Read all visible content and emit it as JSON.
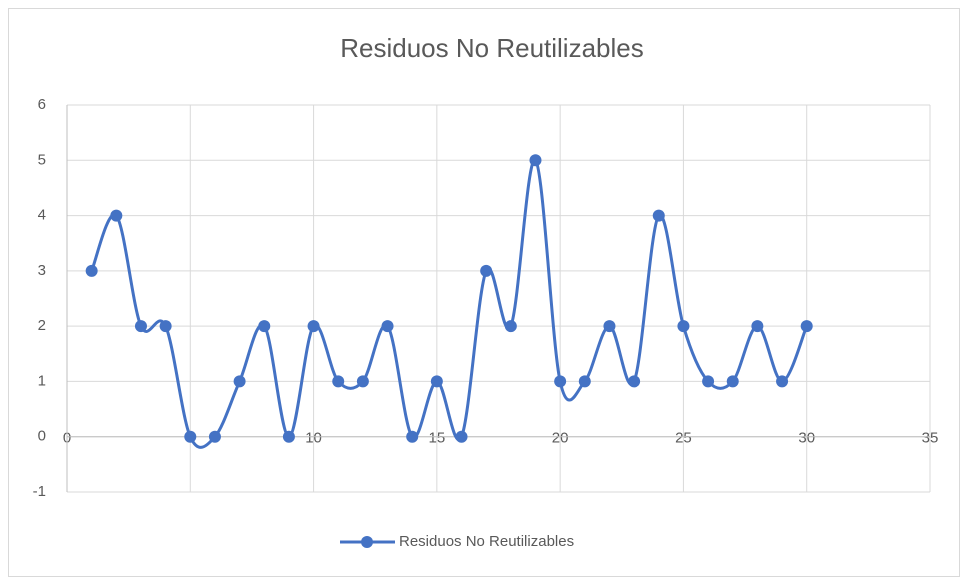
{
  "chart_data": {
    "type": "scatter",
    "title": "Residuos No Reutilizables",
    "x": [
      1,
      2,
      3,
      4,
      5,
      6,
      7,
      8,
      9,
      10,
      11,
      12,
      13,
      14,
      15,
      16,
      17,
      18,
      19,
      20,
      21,
      22,
      23,
      24,
      25,
      26,
      27,
      28,
      29,
      30
    ],
    "series": [
      {
        "name": "Residuos No Reutilizables",
        "color": "#4472c4",
        "values": [
          3,
          4,
          2,
          2,
          0,
          0,
          1,
          2,
          0,
          2,
          1,
          1,
          2,
          0,
          1,
          0,
          3,
          2,
          5,
          1,
          1,
          2,
          1,
          4,
          2,
          1,
          1,
          2,
          1,
          2
        ]
      }
    ],
    "xlim": [
      0,
      35
    ],
    "xticks": [
      0,
      5,
      10,
      15,
      20,
      25,
      30,
      35
    ],
    "ylim": [
      -1,
      6
    ],
    "yticks": [
      -1,
      0,
      1,
      2,
      3,
      4,
      5,
      6
    ],
    "grid": true,
    "smooth": true,
    "legend": "bottom"
  }
}
